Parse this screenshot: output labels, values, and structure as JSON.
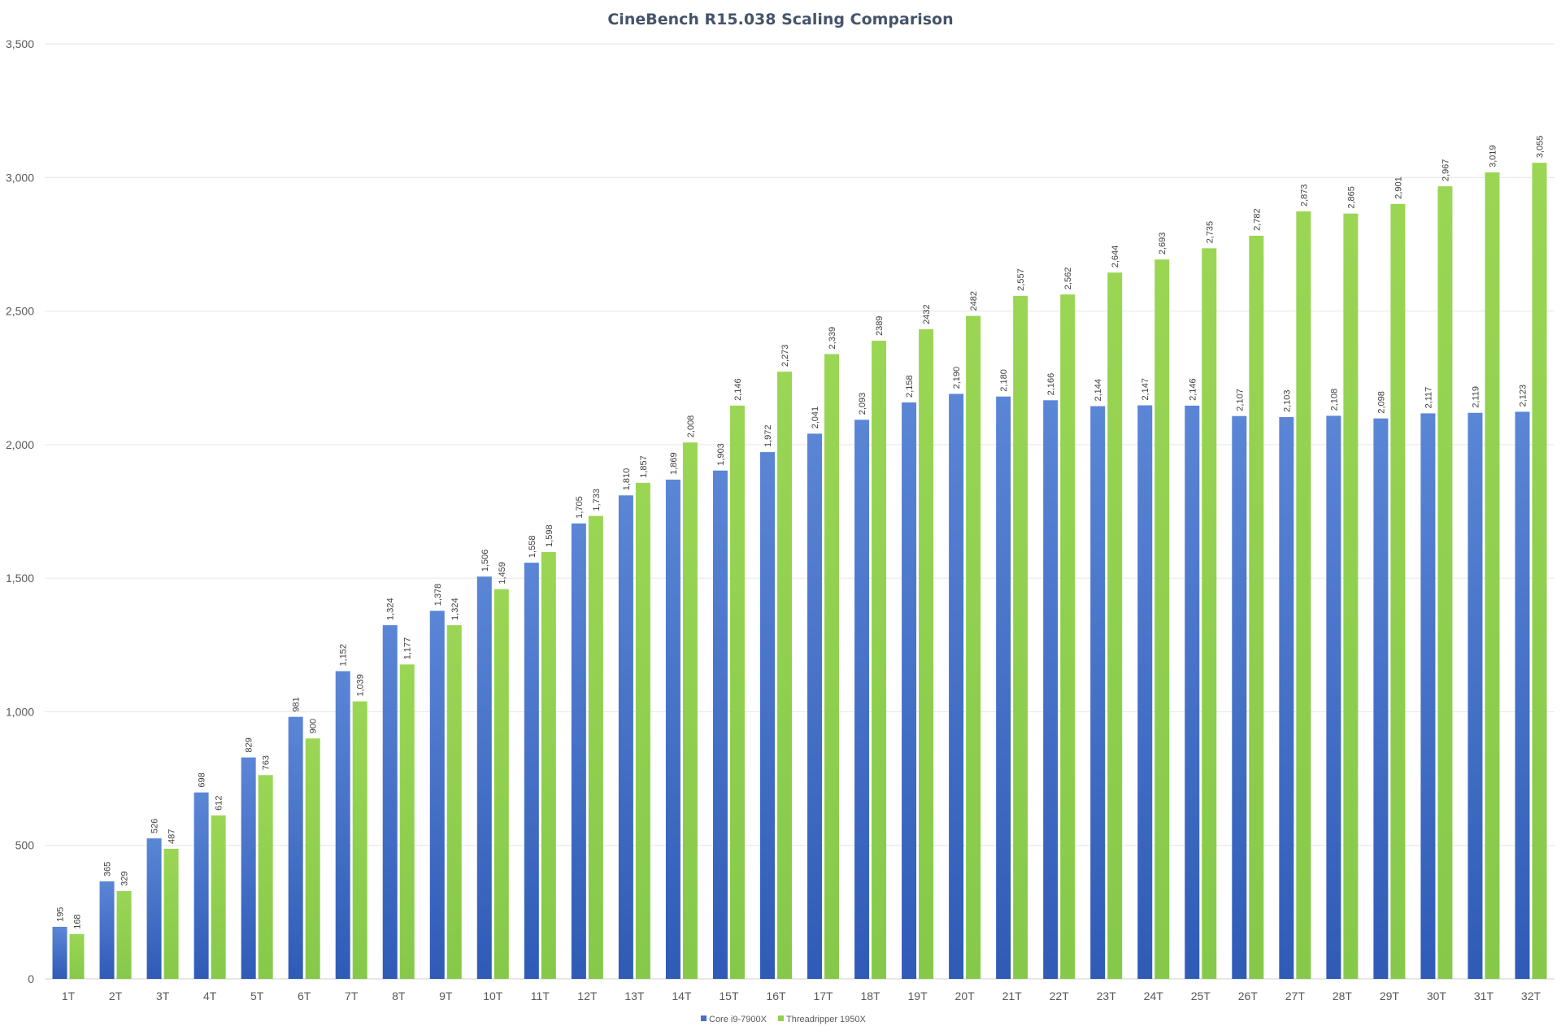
{
  "chart_data": {
    "type": "bar",
    "title": "CineBench R15.038 Scaling Comparison",
    "xlabel": "",
    "ylabel": "",
    "ylim": [
      0,
      3500
    ],
    "yticks": [
      0,
      500,
      1000,
      1500,
      2000,
      2500,
      3000,
      3500
    ],
    "ytick_labels": [
      "0",
      "500",
      "1,000",
      "1,500",
      "2,000",
      "2,500",
      "3,000",
      "3,500"
    ],
    "grid": true,
    "legend_position": "bottom",
    "categories": [
      "1T",
      "2T",
      "3T",
      "4T",
      "5T",
      "6T",
      "7T",
      "8T",
      "9T",
      "10T",
      "11T",
      "12T",
      "13T",
      "14T",
      "15T",
      "16T",
      "17T",
      "18T",
      "19T",
      "20T",
      "21T",
      "22T",
      "23T",
      "24T",
      "25T",
      "26T",
      "27T",
      "28T",
      "29T",
      "30T",
      "31T",
      "32T"
    ],
    "series": [
      {
        "name": "Core i9-7900X",
        "color": "#4472c4",
        "values": [
          195,
          365,
          526,
          698,
          829,
          981,
          1152,
          1324,
          1378,
          1506,
          1558,
          1705,
          1810,
          1869,
          1903,
          1972,
          2041,
          2093,
          2158,
          2190,
          2180,
          2166,
          2144,
          2147,
          2146,
          2107,
          2103,
          2108,
          2098,
          2117,
          2119,
          2123
        ],
        "labels": [
          "195",
          "365",
          "526",
          "698",
          "829",
          "981",
          "1,152",
          "1,324",
          "1,378",
          "1,506",
          "1,558",
          "1,705",
          "1,810",
          "1,869",
          "1,903",
          "1,972",
          "2,041",
          "2,093",
          "2,158",
          "2,190",
          "2,180",
          "2,166",
          "2,144",
          "2,147",
          "2,146",
          "2,107",
          "2,103",
          "2,108",
          "2,098",
          "2,117",
          "2,119",
          "2,123"
        ]
      },
      {
        "name": "Threadripper 1950X",
        "color": "#92d050",
        "values": [
          168,
          329,
          487,
          612,
          763,
          900,
          1039,
          1177,
          1324,
          1459,
          1598,
          1733,
          1857,
          2008,
          2146,
          2273,
          2339,
          2389,
          2432,
          2482,
          2557,
          2562,
          2644,
          2693,
          2735,
          2782,
          2873,
          2865,
          2901,
          2967,
          3019,
          3055
        ],
        "labels": [
          "168",
          "329",
          "487",
          "612",
          "763",
          "900",
          "1,039",
          "1,177",
          "1,324",
          "1,459",
          "1,598",
          "1,733",
          "1,857",
          "2,008",
          "2,146",
          "2,273",
          "2,339",
          "2389",
          "2432",
          "2482",
          "2,557",
          "2,562",
          "2,644",
          "2,693",
          "2,735",
          "2,782",
          "2,873",
          "2,865",
          "2,901",
          "2,967",
          "3,019",
          "3,055"
        ]
      }
    ]
  }
}
